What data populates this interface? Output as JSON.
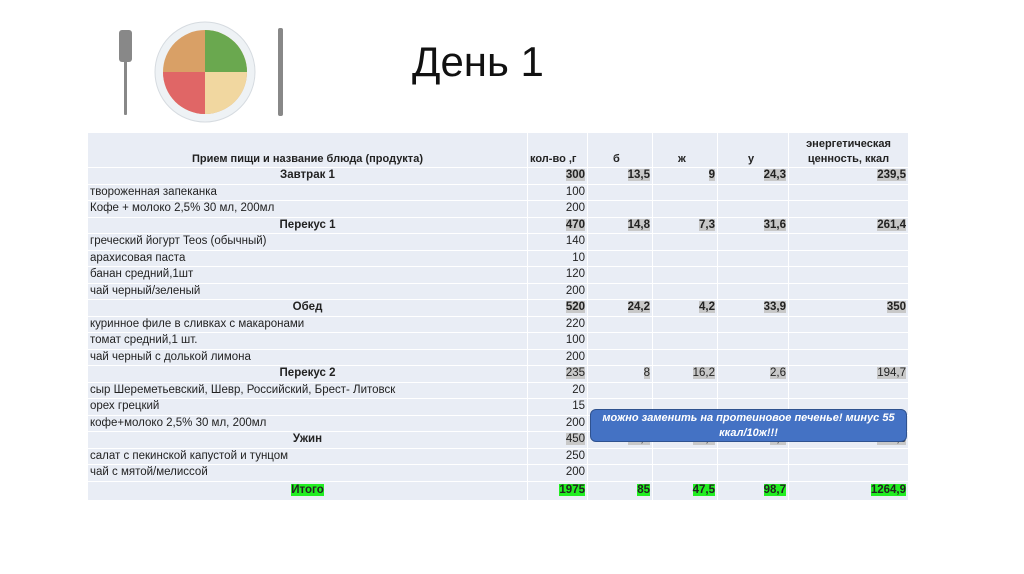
{
  "title": "День 1",
  "headers": [
    "Прием пищи и название блюда (продукта)",
    "кол-во ,г",
    "б",
    "ж",
    "у",
    "энергетическая ценность, ккал"
  ],
  "rows": [
    {
      "type": "meal",
      "bold": true,
      "name": "Завтрак 1",
      "qty": "300",
      "b": "13,5",
      "f": "9",
      "c": "24,3",
      "kcal": "239,5"
    },
    {
      "type": "item",
      "name": "твороженная запеканка",
      "qty": "100"
    },
    {
      "type": "item",
      "name": "Кофе + молоко 2,5% 30 мл, 200мл",
      "qty": "200"
    },
    {
      "type": "meal",
      "bold": true,
      "name": "Перекус 1",
      "qty": "470",
      "b": "14,8",
      "f": "7,3",
      "c": "31,6",
      "kcal": "261,4"
    },
    {
      "type": "item",
      "name": "греческий йогурт Teos (обычный)",
      "qty": "140"
    },
    {
      "type": "item",
      "name": "арахисовая паста",
      "qty": "10"
    },
    {
      "type": "item",
      "name": "банан средний,1шт",
      "qty": "120"
    },
    {
      "type": "item",
      "name": "чай черный/зеленый",
      "qty": "200"
    },
    {
      "type": "meal",
      "bold": true,
      "name": "Обед",
      "qty": "520",
      "b": "24,2",
      "f": "4,2",
      "c": "33,9",
      "kcal": "350"
    },
    {
      "type": "item",
      "name": "куринное филе в сливках с макаронами",
      "qty": "220"
    },
    {
      "type": "item",
      "name": "томат средний,1 шт.",
      "qty": "100"
    },
    {
      "type": "item",
      "name": "чай черный с долькой лимона",
      "qty": "200"
    },
    {
      "type": "meal",
      "bold": false,
      "name": "Перекус 2",
      "qty": "235",
      "b": "8",
      "f": "16,2",
      "c": "2,6",
      "kcal": "194,7"
    },
    {
      "type": "item",
      "name": "сыр Шереметьевский, Шевр, Российский, Брест- Литовск",
      "qty": "20"
    },
    {
      "type": "item",
      "name": "орех грецкий",
      "qty": "15"
    },
    {
      "type": "item",
      "name": "кофе+молоко 2,5% 30 мл, 200мл",
      "qty": "200"
    },
    {
      "type": "meal",
      "bold": false,
      "name": "Ужин",
      "qty": "450",
      "b": "24,5",
      "f": "10,8",
      "c": "6,3",
      "kcal": "219,3"
    },
    {
      "type": "item",
      "name": "салат с пекинской капустой и тунцом",
      "qty": "250"
    },
    {
      "type": "item",
      "name": "чай с мятой/мелиссой",
      "qty": "200"
    }
  ],
  "total": {
    "name": "Итого",
    "qty": "1975",
    "b": "85",
    "f": "47,5",
    "c": "98,7",
    "kcal": "1264,9"
  },
  "note": "можно заменить на протеиновое печенье! минус 55 ккал/10ж!!!",
  "colors": {
    "total_highlight": "#22ee22",
    "value_highlight": "#c8c8c8",
    "note_bg": "#4472c4"
  }
}
